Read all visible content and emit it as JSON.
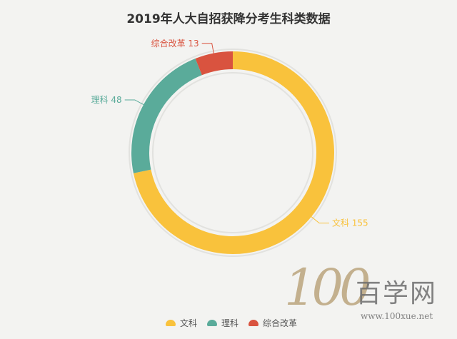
{
  "chart_data": {
    "type": "pie",
    "title": "2019年人大自招获降分考生科类数据",
    "categories": [
      "文科",
      "理科",
      "综合改革"
    ],
    "values": [
      155,
      48,
      13
    ],
    "colors": [
      "#f9c23c",
      "#5aab9a",
      "#d9533f"
    ],
    "label_texts": [
      "文科 155",
      "理科 48",
      "综合改革 13"
    ],
    "donut": true,
    "legend_position": "bottom"
  },
  "watermark": {
    "logo_text": "100",
    "brand_text": "百学网",
    "url_text": "www.100xue.net"
  }
}
